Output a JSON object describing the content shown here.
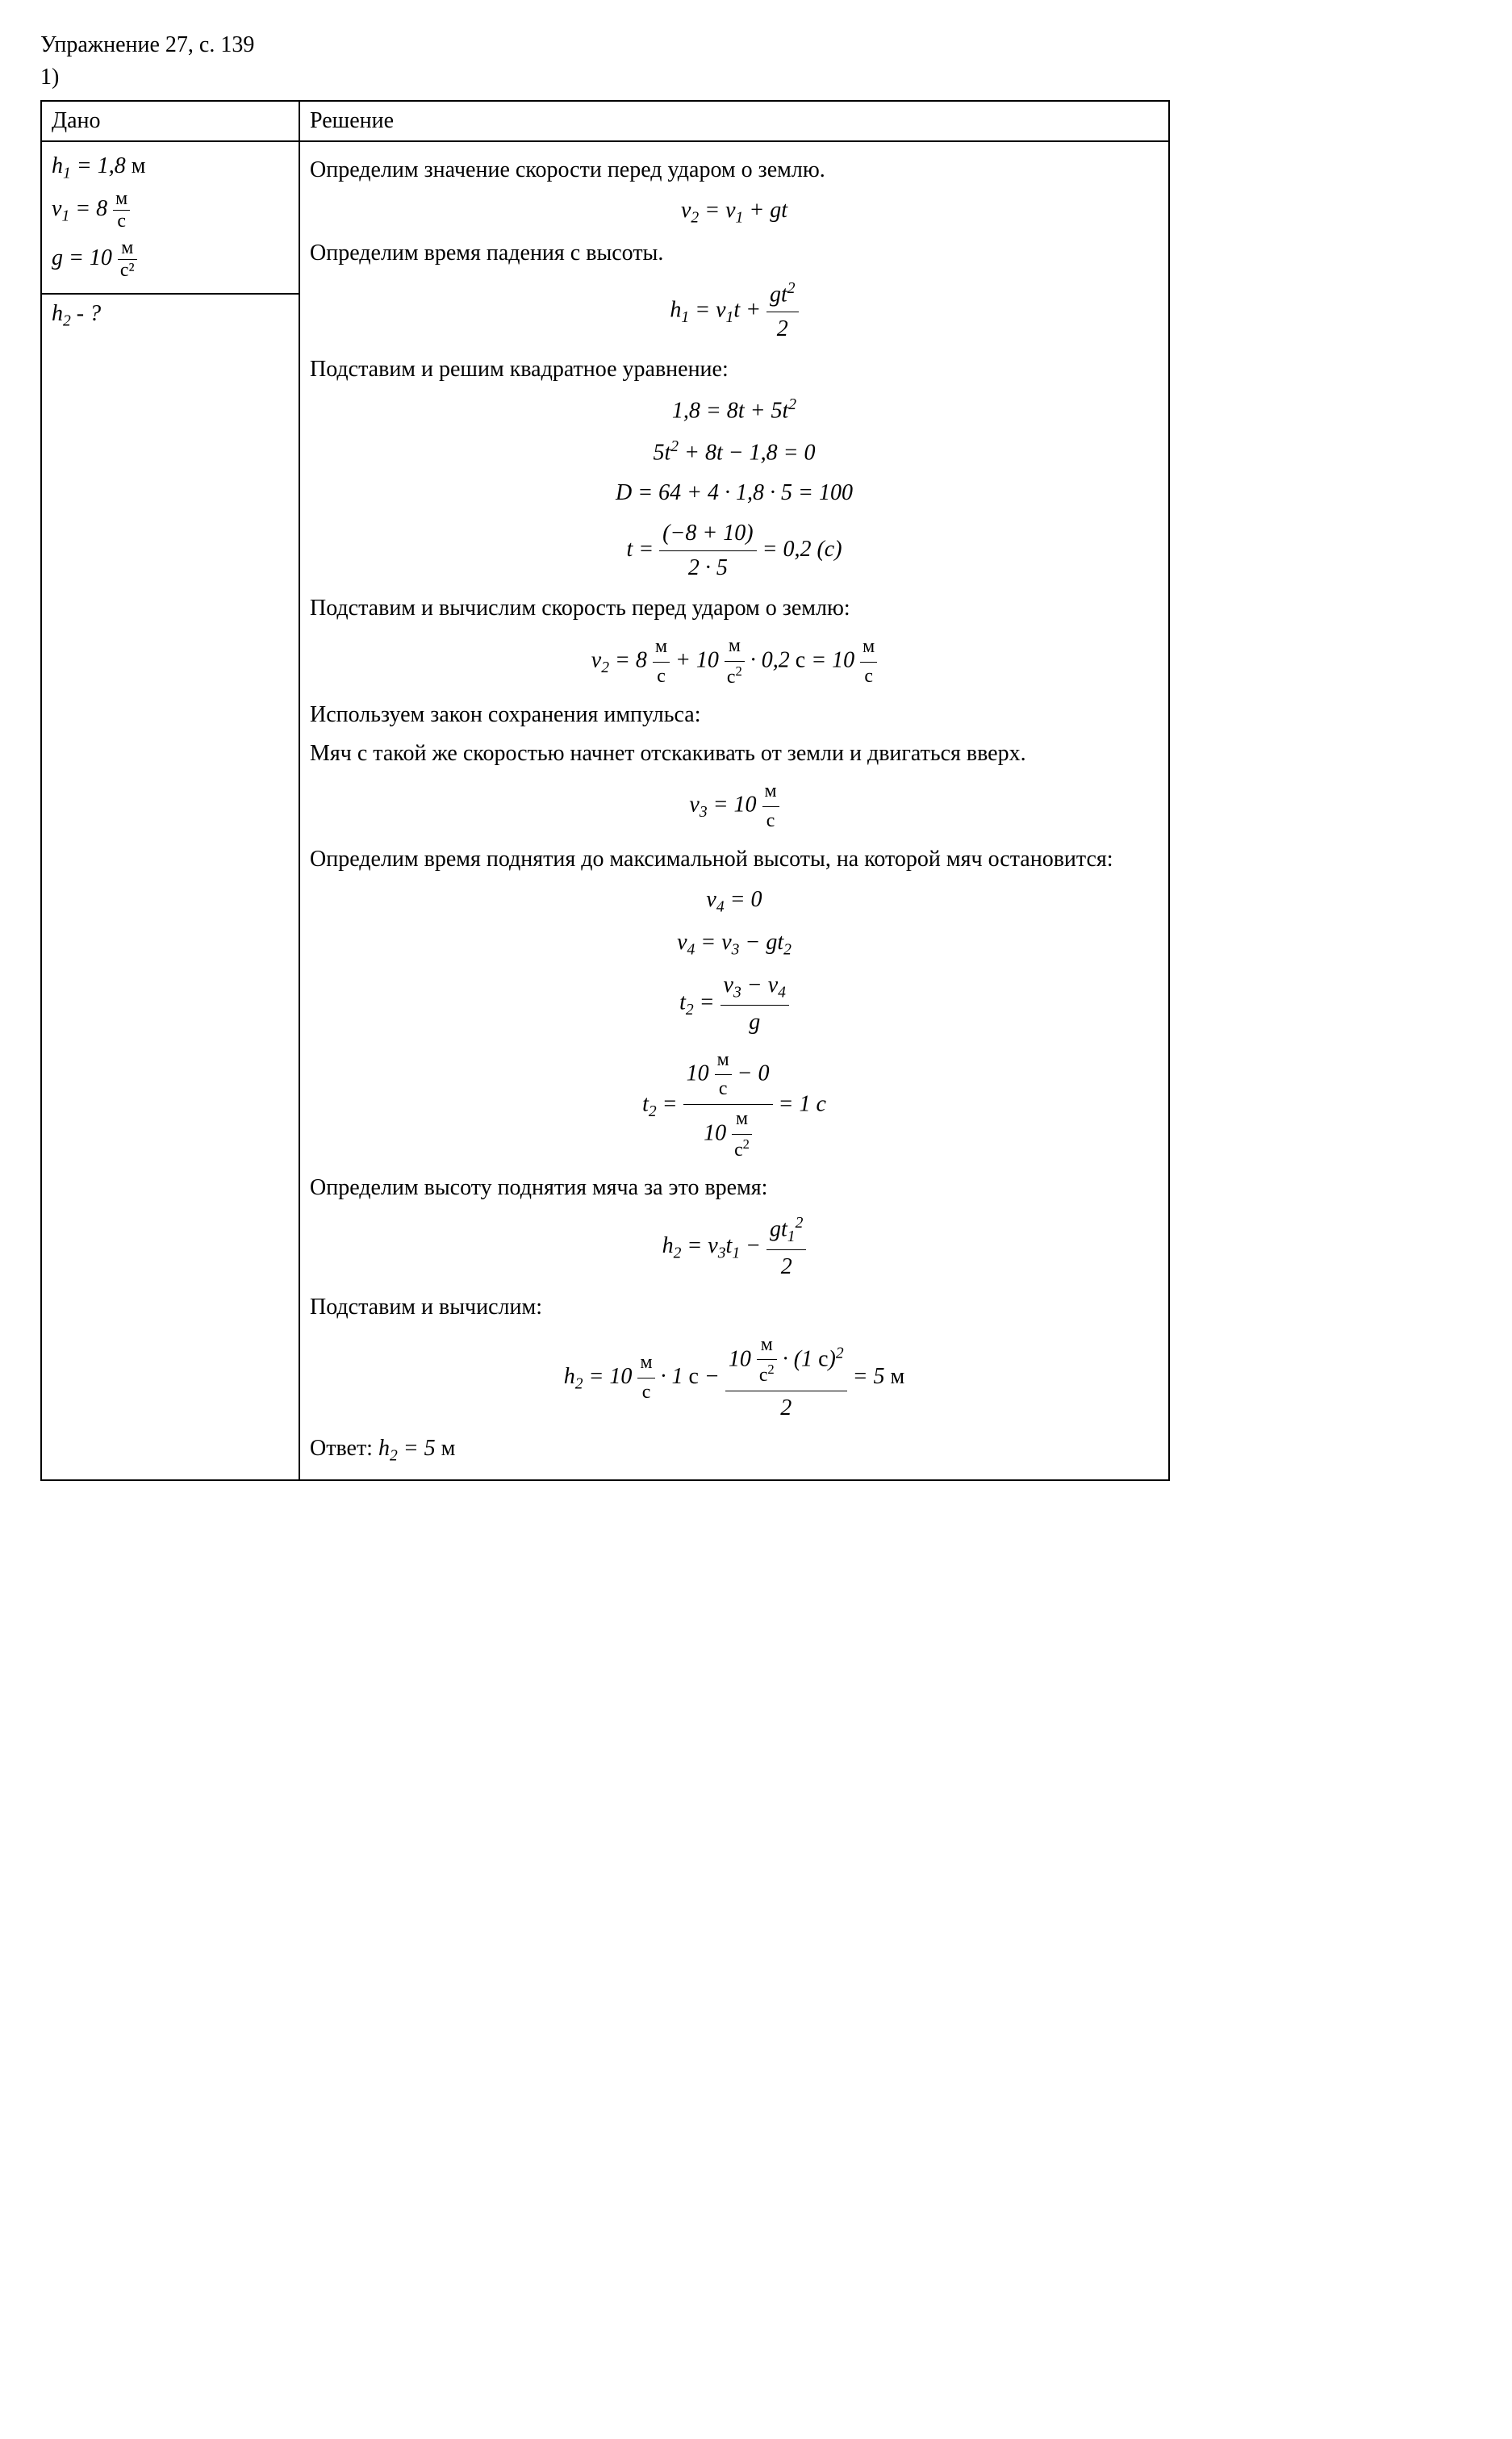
{
  "header": {
    "title": "Упражнение 27, с. 139",
    "item": "1)"
  },
  "given": {
    "label": "Дано",
    "h1_line": "h₁ = 1,8 м",
    "v1_val": "8",
    "g_val": "10",
    "find": "h₂ - ?"
  },
  "solution": {
    "label": "Решение",
    "p1": "Определим значение скорости перед ударом о землю.",
    "f1": "v₂ = v₁ + gt",
    "p2": "Определим время падения с высоты.",
    "p3": "Подставим и решим квадратное уравнение:",
    "f3a": "1,8 = 8t + 5t²",
    "f3b": "5t² + 8t − 1,8 = 0",
    "f3c": "D = 64 + 4 · 1,8 · 5 = 100",
    "f3d_num": "(−8 + 10)",
    "f3d_den": "2 · 5",
    "f3d_res": "= 0,2 (с)",
    "p4": "Подставим и вычислим скорость перед ударом о землю:",
    "p5": "Используем закон сохранения импульса:",
    "p6": "Мяч с такой же скоростью начнет отскакивать от земли и двигаться вверх.",
    "p7": "Определим время поднятия до максимальной высоты, на которой мяч остановится:",
    "f7a": "v₄ = 0",
    "f7b": "v₄ = v₃ − gt₂",
    "p8": "Определим высоту поднятия мяча за это время:",
    "p9": "Подставим и вычислим:",
    "answer_label": "Ответ: ",
    "answer_val": "h₂ = 5 м"
  },
  "units": {
    "m_s": "м",
    "m_s_den": "с",
    "m_s2": "м",
    "m_s2_den": "с²"
  },
  "colors": {
    "text": "#000000",
    "bg": "#ffffff",
    "border": "#000000"
  },
  "typography": {
    "font_family": "Times New Roman",
    "base_fontsize_pt": 21
  }
}
